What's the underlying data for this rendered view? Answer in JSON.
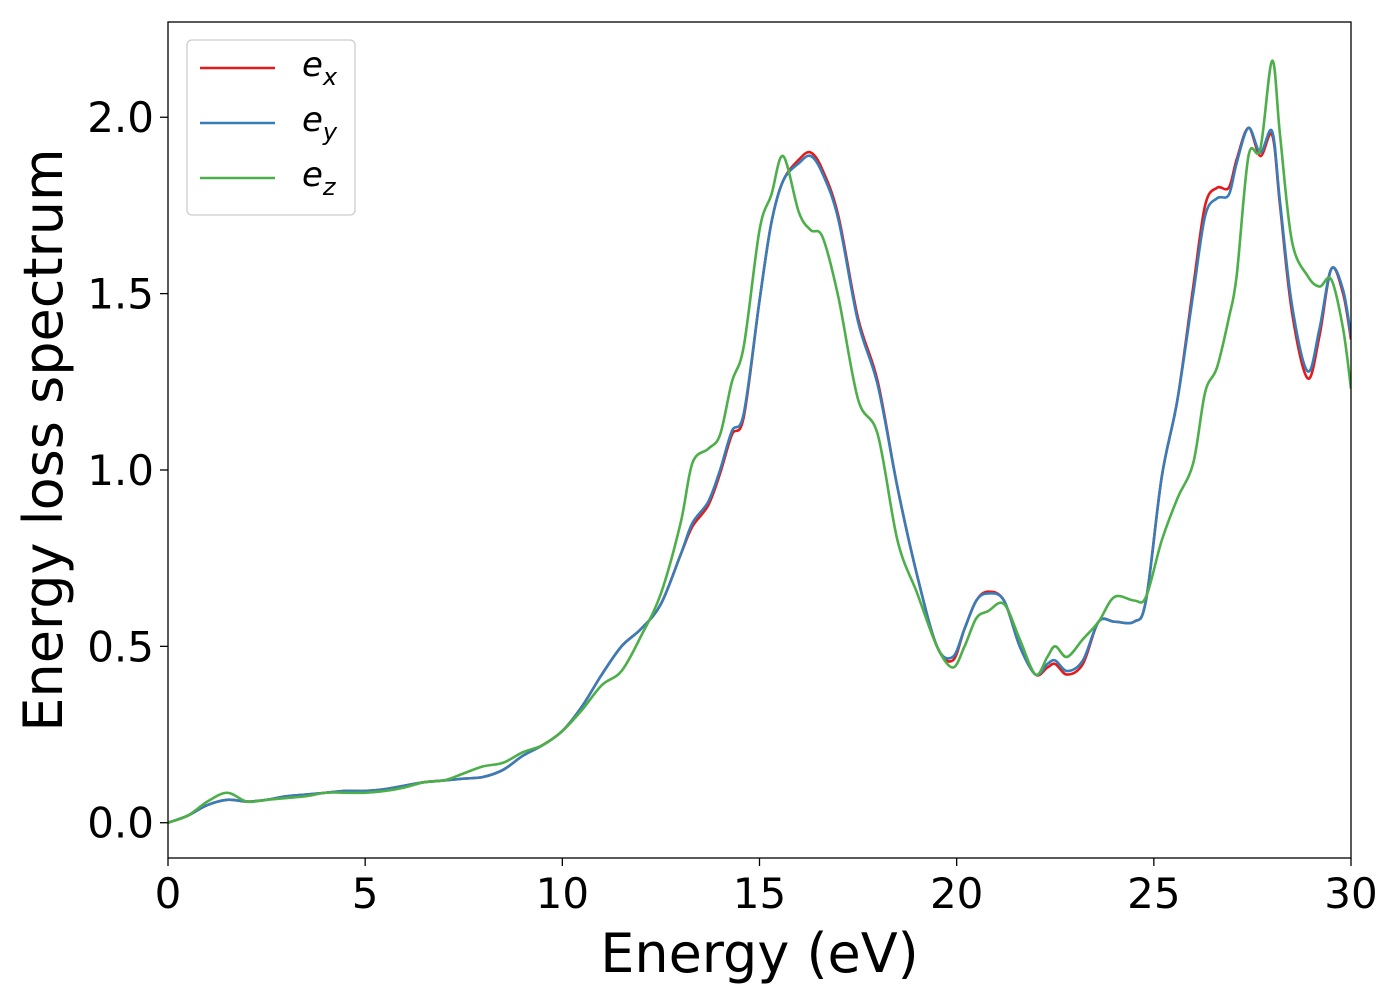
{
  "chart_data": {
    "type": "line",
    "xlabel": "Energy (eV)",
    "ylabel": "Energy loss spectrum",
    "xlim": [
      0,
      30
    ],
    "ylim": [
      -0.1,
      2.27
    ],
    "xticks": [
      0,
      5,
      10,
      15,
      20,
      25,
      30
    ],
    "xtick_labels": [
      "0",
      "5",
      "10",
      "15",
      "20",
      "25",
      "30"
    ],
    "yticks": [
      0.0,
      0.5,
      1.0,
      1.5,
      2.0
    ],
    "ytick_labels": [
      "0.0",
      "0.5",
      "1.0",
      "1.5",
      "2.0"
    ],
    "grid": false,
    "legend_position": "top-left",
    "series": [
      {
        "name": "e_x",
        "legend_base": "e",
        "legend_sub": "x",
        "color": "#e41a1c",
        "x": [
          0,
          0.5,
          1,
          1.5,
          2,
          2.5,
          3,
          3.5,
          4,
          4.5,
          5,
          5.5,
          6,
          6.5,
          7,
          7.5,
          8,
          8.5,
          9,
          9.5,
          10,
          10.5,
          11,
          11.5,
          12,
          12.5,
          13,
          13.3,
          13.7,
          14,
          14.3,
          14.6,
          15,
          15.3,
          15.6,
          16,
          16.3,
          16.6,
          17,
          17.5,
          18,
          18.5,
          19,
          19.5,
          19.9,
          20.2,
          20.5,
          20.8,
          21.2,
          21.6,
          22,
          22.3,
          22.5,
          22.8,
          23.2,
          23.6,
          24,
          24.5,
          24.8,
          25.2,
          25.6,
          26,
          26.3,
          26.6,
          26.9,
          27.1,
          27.4,
          27.7,
          28,
          28.2,
          28.5,
          28.9,
          29.2,
          29.5,
          29.8,
          30
        ],
        "y": [
          0.0,
          0.02,
          0.05,
          0.065,
          0.06,
          0.065,
          0.075,
          0.08,
          0.085,
          0.09,
          0.09,
          0.095,
          0.105,
          0.115,
          0.12,
          0.125,
          0.13,
          0.15,
          0.19,
          0.22,
          0.26,
          0.33,
          0.42,
          0.5,
          0.55,
          0.62,
          0.76,
          0.84,
          0.9,
          0.99,
          1.1,
          1.15,
          1.48,
          1.7,
          1.82,
          1.88,
          1.9,
          1.85,
          1.72,
          1.43,
          1.25,
          0.95,
          0.7,
          0.5,
          0.46,
          0.55,
          0.63,
          0.655,
          0.63,
          0.5,
          0.42,
          0.44,
          0.45,
          0.42,
          0.45,
          0.57,
          0.57,
          0.57,
          0.63,
          0.98,
          1.2,
          1.52,
          1.75,
          1.8,
          1.8,
          1.88,
          1.97,
          1.89,
          1.95,
          1.75,
          1.45,
          1.26,
          1.38,
          1.57,
          1.5,
          1.37
        ]
      },
      {
        "name": "e_y",
        "legend_base": "e",
        "legend_sub": "y",
        "color": "#377eb8",
        "x": [
          0,
          0.5,
          1,
          1.5,
          2,
          2.5,
          3,
          3.5,
          4,
          4.5,
          5,
          5.5,
          6,
          6.5,
          7,
          7.5,
          8,
          8.5,
          9,
          9.5,
          10,
          10.5,
          11,
          11.5,
          12,
          12.5,
          13,
          13.3,
          13.7,
          14,
          14.3,
          14.6,
          15,
          15.3,
          15.6,
          16,
          16.3,
          16.6,
          17,
          17.5,
          18,
          18.5,
          19,
          19.5,
          19.9,
          20.2,
          20.5,
          20.8,
          21.2,
          21.6,
          22,
          22.3,
          22.5,
          22.8,
          23.2,
          23.6,
          24,
          24.5,
          24.8,
          25.2,
          25.6,
          26,
          26.3,
          26.6,
          26.9,
          27.1,
          27.4,
          27.7,
          28,
          28.2,
          28.5,
          28.9,
          29.2,
          29.5,
          29.8,
          30
        ],
        "y": [
          0.0,
          0.02,
          0.05,
          0.065,
          0.06,
          0.065,
          0.075,
          0.08,
          0.085,
          0.09,
          0.09,
          0.095,
          0.105,
          0.115,
          0.12,
          0.125,
          0.13,
          0.15,
          0.19,
          0.22,
          0.26,
          0.33,
          0.42,
          0.5,
          0.55,
          0.62,
          0.76,
          0.85,
          0.91,
          1.0,
          1.11,
          1.16,
          1.48,
          1.7,
          1.82,
          1.87,
          1.89,
          1.84,
          1.71,
          1.42,
          1.24,
          0.95,
          0.7,
          0.5,
          0.47,
          0.55,
          0.63,
          0.65,
          0.63,
          0.5,
          0.42,
          0.45,
          0.46,
          0.43,
          0.46,
          0.57,
          0.57,
          0.57,
          0.63,
          0.98,
          1.2,
          1.5,
          1.72,
          1.77,
          1.78,
          1.87,
          1.97,
          1.9,
          1.96,
          1.76,
          1.47,
          1.28,
          1.4,
          1.57,
          1.51,
          1.38
        ]
      },
      {
        "name": "e_z",
        "legend_base": "e",
        "legend_sub": "z",
        "color": "#4daf4a",
        "x": [
          0,
          0.5,
          1,
          1.5,
          2,
          2.5,
          3,
          3.5,
          4,
          4.5,
          5,
          5.5,
          6,
          6.5,
          7,
          7.5,
          8,
          8.5,
          9,
          9.5,
          10,
          10.5,
          11,
          11.5,
          12,
          12.5,
          13,
          13.3,
          13.7,
          14,
          14.3,
          14.6,
          15,
          15.3,
          15.6,
          16,
          16.3,
          16.6,
          17,
          17.5,
          18,
          18.5,
          19,
          19.5,
          19.9,
          20.2,
          20.5,
          20.8,
          21.2,
          21.6,
          22,
          22.3,
          22.5,
          22.8,
          23.2,
          23.6,
          24,
          24.5,
          24.8,
          25.2,
          25.6,
          26,
          26.3,
          26.6,
          26.9,
          27.1,
          27.4,
          27.7,
          28,
          28.2,
          28.5,
          28.9,
          29.2,
          29.5,
          29.8,
          30
        ],
        "y": [
          0.0,
          0.02,
          0.06,
          0.085,
          0.06,
          0.065,
          0.07,
          0.075,
          0.085,
          0.085,
          0.085,
          0.09,
          0.1,
          0.115,
          0.12,
          0.14,
          0.16,
          0.17,
          0.2,
          0.22,
          0.26,
          0.32,
          0.39,
          0.43,
          0.53,
          0.65,
          0.85,
          1.02,
          1.06,
          1.1,
          1.25,
          1.35,
          1.68,
          1.78,
          1.89,
          1.73,
          1.68,
          1.66,
          1.49,
          1.2,
          1.1,
          0.8,
          0.65,
          0.5,
          0.44,
          0.5,
          0.58,
          0.6,
          0.62,
          0.52,
          0.42,
          0.47,
          0.5,
          0.47,
          0.52,
          0.57,
          0.64,
          0.63,
          0.64,
          0.8,
          0.92,
          1.02,
          1.22,
          1.29,
          1.43,
          1.55,
          1.89,
          1.91,
          2.16,
          1.95,
          1.65,
          1.55,
          1.52,
          1.54,
          1.4,
          1.23
        ]
      }
    ]
  }
}
